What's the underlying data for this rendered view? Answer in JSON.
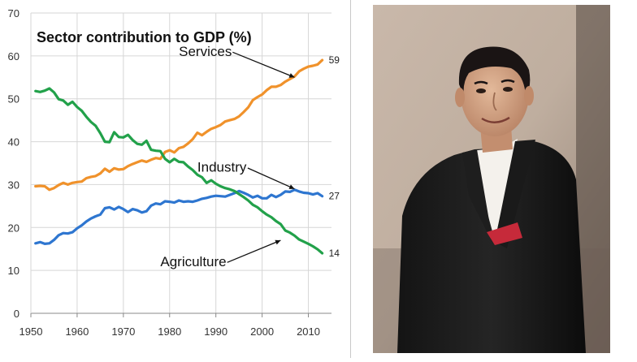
{
  "chart_data": {
    "type": "line",
    "title": "Sector contribution to GDP (%)",
    "xlabel": "",
    "ylabel": "",
    "xlim": [
      1950,
      2015
    ],
    "ylim": [
      0,
      70
    ],
    "xticks": [
      1950,
      1960,
      1970,
      1980,
      1990,
      2000,
      2010
    ],
    "yticks": [
      0,
      10,
      20,
      30,
      40,
      50,
      60,
      70
    ],
    "grid": true,
    "legend": "none",
    "series": [
      {
        "name": "Services",
        "color": "#f0922b",
        "end_label": "59",
        "x": [
          1951,
          1952,
          1953,
          1954,
          1955,
          1956,
          1957,
          1958,
          1959,
          1960,
          1961,
          1962,
          1963,
          1964,
          1965,
          1966,
          1967,
          1968,
          1969,
          1970,
          1971,
          1972,
          1973,
          1974,
          1975,
          1976,
          1977,
          1978,
          1979,
          1980,
          1981,
          1982,
          1983,
          1984,
          1985,
          1986,
          1987,
          1988,
          1989,
          1990,
          1991,
          1992,
          1993,
          1994,
          1995,
          1996,
          1997,
          1998,
          1999,
          2000,
          2001,
          2002,
          2003,
          2004,
          2005,
          2006,
          2007,
          2008,
          2009,
          2010,
          2011,
          2012,
          2013
        ],
        "values": [
          29.6,
          29.7,
          29.6,
          28.8,
          29.2,
          29.9,
          30.4,
          30.0,
          30.4,
          30.6,
          30.7,
          31.5,
          31.8,
          32.0,
          32.6,
          33.7,
          33.0,
          33.8,
          33.5,
          33.6,
          34.3,
          34.8,
          35.2,
          35.6,
          35.3,
          35.8,
          36.2,
          36.0,
          37.6,
          38.0,
          37.5,
          38.5,
          38.8,
          39.6,
          40.6,
          42.1,
          41.5,
          42.3,
          43.0,
          43.4,
          43.9,
          44.7,
          45.0,
          45.3,
          45.9,
          46.9,
          48.0,
          49.7,
          50.4,
          51.0,
          52.0,
          52.8,
          52.8,
          53.2,
          54.0,
          54.6,
          55.2,
          56.4,
          57.0,
          57.5,
          57.7,
          58.0,
          59.0
        ]
      },
      {
        "name": "Industry",
        "color": "#2e76d0",
        "end_label": "27",
        "x": [
          1951,
          1952,
          1953,
          1954,
          1955,
          1956,
          1957,
          1958,
          1959,
          1960,
          1961,
          1962,
          1963,
          1964,
          1965,
          1966,
          1967,
          1968,
          1969,
          1970,
          1971,
          1972,
          1973,
          1974,
          1975,
          1976,
          1977,
          1978,
          1979,
          1980,
          1981,
          1982,
          1983,
          1984,
          1985,
          1986,
          1987,
          1988,
          1989,
          1990,
          1991,
          1992,
          1993,
          1994,
          1995,
          1996,
          1997,
          1998,
          1999,
          2000,
          2001,
          2002,
          2003,
          2004,
          2005,
          2006,
          2007,
          2008,
          2009,
          2010,
          2011,
          2012,
          2013
        ],
        "values": [
          16.3,
          16.6,
          16.2,
          16.3,
          17.1,
          18.2,
          18.7,
          18.6,
          18.9,
          19.8,
          20.5,
          21.4,
          22.1,
          22.6,
          23.0,
          24.5,
          24.7,
          24.2,
          24.8,
          24.3,
          23.6,
          24.3,
          24.0,
          23.5,
          23.8,
          25.1,
          25.6,
          25.4,
          26.1,
          26.0,
          25.8,
          26.3,
          26.0,
          26.1,
          26.0,
          26.3,
          26.7,
          26.9,
          27.2,
          27.4,
          27.3,
          27.2,
          27.6,
          28.0,
          28.5,
          28.1,
          27.6,
          27.0,
          27.4,
          26.8,
          26.8,
          27.6,
          27.1,
          27.6,
          28.4,
          28.3,
          28.8,
          28.4,
          28.1,
          28.0,
          27.7,
          28.0,
          27.3
        ]
      },
      {
        "name": "Agriculture",
        "color": "#22a14a",
        "end_label": "14",
        "x": [
          1951,
          1952,
          1953,
          1954,
          1955,
          1956,
          1957,
          1958,
          1959,
          1960,
          1961,
          1962,
          1963,
          1964,
          1965,
          1966,
          1967,
          1968,
          1969,
          1970,
          1971,
          1972,
          1973,
          1974,
          1975,
          1976,
          1977,
          1978,
          1979,
          1980,
          1981,
          1982,
          1983,
          1984,
          1985,
          1986,
          1987,
          1988,
          1989,
          1990,
          1991,
          1992,
          1993,
          1994,
          1995,
          1996,
          1997,
          1998,
          1999,
          2000,
          2001,
          2002,
          2003,
          2004,
          2005,
          2006,
          2007,
          2008,
          2009,
          2010,
          2011,
          2012,
          2013
        ],
        "values": [
          51.8,
          51.6,
          51.9,
          52.4,
          51.5,
          49.9,
          49.6,
          48.6,
          49.3,
          48.1,
          47.2,
          45.8,
          44.6,
          43.7,
          42.0,
          40.0,
          39.9,
          42.2,
          41.1,
          41.0,
          41.6,
          40.4,
          39.5,
          39.3,
          40.2,
          38.1,
          37.9,
          37.8,
          36.0,
          35.2,
          36.0,
          35.3,
          35.2,
          34.2,
          33.4,
          32.3,
          31.7,
          30.4,
          31.0,
          30.2,
          29.6,
          29.2,
          28.9,
          28.5,
          27.8,
          27.1,
          26.3,
          25.3,
          24.7,
          23.8,
          23.0,
          22.4,
          21.5,
          20.8,
          19.3,
          18.8,
          18.1,
          17.2,
          16.7,
          16.2,
          15.6,
          14.9,
          14.0
        ]
      }
    ],
    "annotations": [
      {
        "text": "Services",
        "x": 1982,
        "y": 60,
        "arrow_to": [
          2007,
          55
        ]
      },
      {
        "text": "Industry",
        "x": 1986,
        "y": 33,
        "arrow_to": [
          2007,
          29
        ]
      },
      {
        "text": "Agriculture",
        "x": 1978,
        "y": 11,
        "arrow_to": [
          2004,
          17
        ]
      }
    ]
  },
  "photo": {
    "icon": "portrait-photo"
  }
}
